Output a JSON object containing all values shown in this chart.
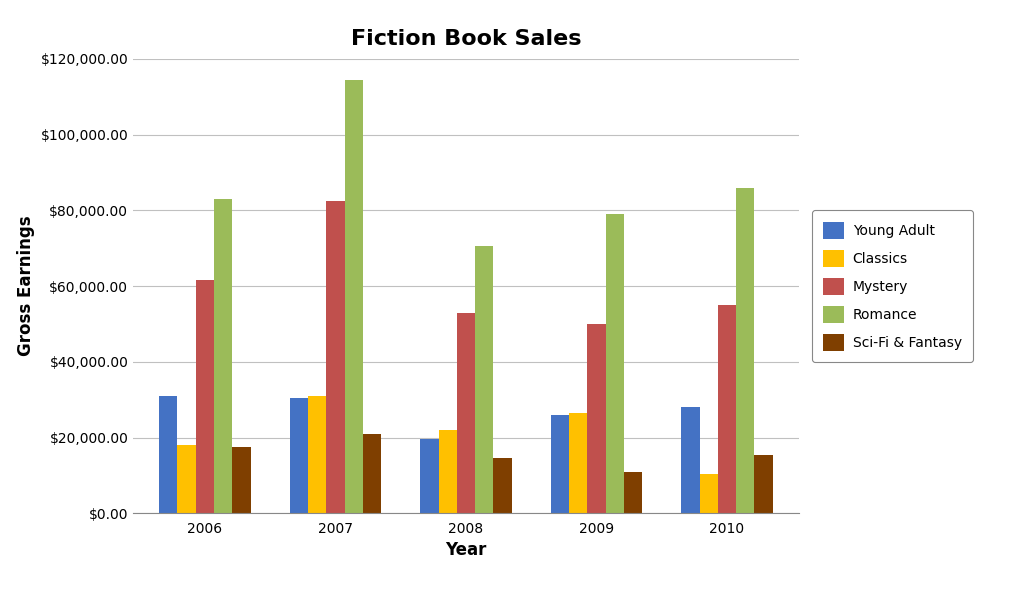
{
  "title": "Fiction Book Sales",
  "xlabel": "Year",
  "ylabel": "Gross Earnings",
  "years": [
    2006,
    2007,
    2008,
    2009,
    2010
  ],
  "series": {
    "Young Adult": [
      31000,
      30500,
      19500,
      26000,
      28000
    ],
    "Classics": [
      18000,
      31000,
      22000,
      26500,
      10500
    ],
    "Mystery": [
      61500,
      82500,
      53000,
      50000,
      55000
    ],
    "Romance": [
      83000,
      114500,
      70500,
      79000,
      86000
    ],
    "Sci-Fi & Fantasy": [
      17500,
      21000,
      14500,
      11000,
      15500
    ]
  },
  "colors": {
    "Young Adult": "#4472C4",
    "Classics": "#FFC000",
    "Mystery": "#C0504D",
    "Romance": "#9BBB59",
    "Sci-Fi & Fantasy": "#7F3F00"
  },
  "ylim": [
    0,
    120000
  ],
  "ytick_step": 20000,
  "background_color": "#FFFFFF",
  "plot_bg_color": "#FFFFFF",
  "grid_color": "#C0C0C0",
  "title_fontsize": 16,
  "axis_label_fontsize": 12,
  "tick_fontsize": 10,
  "legend_fontsize": 10,
  "bar_width": 0.14,
  "figure_bg": "#FFFFFF"
}
